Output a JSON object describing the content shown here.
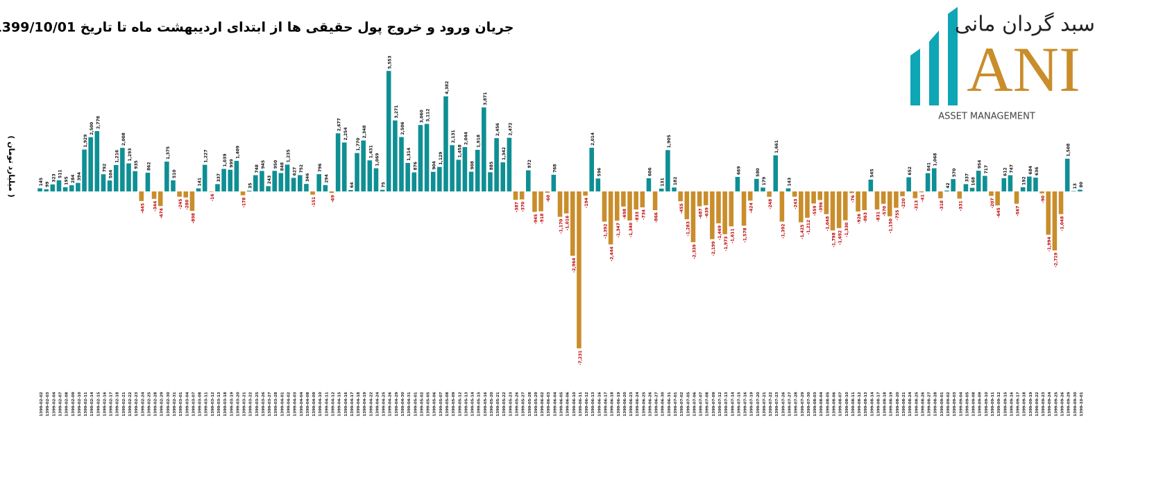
{
  "chart_data": {
    "type": "bar",
    "title": "جریان ورود و خروج پول حقیقی ها از ابتدای اردیبهشت ماه تا تاریخ 1399/10/01",
    "y_label": "( میلیارد تومان )",
    "logo": {
      "name": "سبد گردان مانی",
      "mark": "ANI",
      "tagline": "ASSET MANAGEMENT"
    },
    "colors": {
      "positive": "#0e8f94",
      "negative": "#c98d2b",
      "positive_label": "#111111",
      "negative_label": "#c00000"
    },
    "ylim": [
      -7800,
      5800
    ],
    "categories": [
      "1399-02-02",
      "1399-02-03",
      "1399-02-04",
      "1399-02-07",
      "1399-02-08",
      "1399-02-09",
      "1399-02-10",
      "1399-02-11",
      "1399-02-14",
      "1399-02-15",
      "1399-02-16",
      "1399-02-17",
      "1399-02-18",
      "1399-02-21",
      "1399-02-22",
      "1399-02-23",
      "1399-02-24",
      "1399-02-25",
      "1399-02-28",
      "1399-02-29",
      "1399-02-30",
      "1399-02-31",
      "1399-03-01",
      "1399-03-04",
      "1399-03-07",
      "1399-03-08",
      "1399-03-11",
      "1399-03-12",
      "1399-03-13",
      "1399-03-18",
      "1399-03-19",
      "1399-03-20",
      "1399-03-21",
      "1399-03-22",
      "1399-03-25",
      "1399-03-26",
      "1399-03-27",
      "1399-03-28",
      "1399-04-01",
      "1399-04-02",
      "1399-04-03",
      "1399-04-04",
      "1399-04-08",
      "1399-04-09",
      "1399-04-10",
      "1399-04-11",
      "1399-04-12",
      "1399-04-15",
      "1399-04-16",
      "1399-04-17",
      "1399-04-18",
      "1399-04-19",
      "1399-04-22",
      "1399-04-24",
      "1399-04-25",
      "1399-04-26",
      "1399-04-29",
      "1399-04-30",
      "1399-04-31",
      "1399-05-01",
      "1399-05-02",
      "1399-05-05",
      "1399-05-06",
      "1399-05-07",
      "1399-05-08",
      "1399-05-09",
      "1399-05-12",
      "1399-05-13",
      "1399-05-14",
      "1399-05-15",
      "1399-05-16",
      "1399-05-20",
      "1399-05-21",
      "1399-05-22",
      "1399-05-23",
      "1399-05-26",
      "1399-05-27",
      "1399-05-28",
      "1399-05-29",
      "1399-06-02",
      "1399-06-03",
      "1399-06-04",
      "1399-06-05",
      "1399-06-06",
      "1399-06-10",
      "1399-06-11",
      "1399-06-12",
      "1399-06-13",
      "1399-06-16",
      "1399-06-17",
      "1399-06-18",
      "1399-06-19",
      "1399-06-20",
      "1399-06-23",
      "1399-06-24",
      "1399-06-25",
      "1399-06-26",
      "1399-06-27",
      "1399-06-30",
      "1399-06-31",
      "1399-07-01",
      "1399-07-02",
      "1399-07-05",
      "1399-07-06",
      "1399-07-07",
      "1399-07-08",
      "1399-07-09",
      "1399-07-12",
      "1399-07-13",
      "1399-07-14",
      "1399-07-15",
      "1399-07-16",
      "1399-07-19",
      "1399-07-20",
      "1399-07-21",
      "1399-07-22",
      "1399-07-23",
      "1399-07-26",
      "1399-07-27",
      "1399-07-28",
      "1399-07-29",
      "1399-07-30",
      "1399-08-03",
      "1399-08-04",
      "1399-08-05",
      "1399-08-06",
      "1399-08-07",
      "1399-08-10",
      "1399-08-11",
      "1399-08-12",
      "1399-08-13",
      "1399-08-14",
      "1399-08-17",
      "1399-08-18",
      "1399-08-19",
      "1399-08-20",
      "1399-08-21",
      "1399-08-24",
      "1399-08-25",
      "1399-08-26",
      "1399-08-27",
      "1399-08-28",
      "1399-09-01",
      "1399-09-02",
      "1399-09-03",
      "1399-09-04",
      "1399-09-05",
      "1399-09-08",
      "1399-09-09",
      "1399-09-10",
      "1399-09-11",
      "1399-09-12",
      "1399-09-15",
      "1399-09-16",
      "1399-09-17",
      "1399-09-18",
      "1399-09-19",
      "1399-09-22",
      "1399-09-23",
      "1399-09-24",
      "1399-09-25",
      "1399-09-26",
      "1399-09-29",
      "1399-09-30",
      "1399-10-01"
    ],
    "values": [
      145,
      99,
      323,
      511,
      195,
      284,
      394,
      1929,
      2500,
      2778,
      792,
      504,
      1216,
      2008,
      1293,
      935,
      -445,
      862,
      -344,
      -674,
      1375,
      510,
      -245,
      -280,
      -898,
      141,
      1227,
      -16,
      337,
      1039,
      999,
      1409,
      -178,
      35,
      748,
      945,
      243,
      950,
      848,
      1235,
      627,
      752,
      346,
      -151,
      796,
      294,
      -69,
      2677,
      2254,
      64,
      1770,
      2348,
      1431,
      1069,
      75,
      5553,
      3271,
      2506,
      1314,
      876,
      3060,
      3112,
      904,
      1129,
      4382,
      2131,
      1458,
      2044,
      908,
      1918,
      3871,
      885,
      2456,
      1342,
      2472,
      -387,
      -370,
      972,
      -945,
      -918,
      -60,
      768,
      -1170,
      -1016,
      -2964,
      -7231,
      -194,
      2014,
      596,
      -1392,
      -2444,
      -1347,
      -698,
      -1340,
      -833,
      -734,
      606,
      -866,
      131,
      1905,
      182,
      -455,
      -1283,
      -2339,
      -687,
      -639,
      -2199,
      -1469,
      -1973,
      -1611,
      669,
      -1578,
      -424,
      580,
      179,
      -248,
      1661,
      -1392,
      143,
      -243,
      -1425,
      -1212,
      -559,
      -396,
      -1048,
      -1798,
      -1692,
      -1330,
      -76,
      -926,
      -863,
      545,
      -831,
      -570,
      -1150,
      -755,
      -220,
      652,
      -313,
      -41,
      841,
      1068,
      -318,
      42,
      570,
      -331,
      337,
      168,
      954,
      717,
      -207,
      -645,
      612,
      747,
      -567,
      192,
      684,
      636,
      -90,
      -1994,
      -2719,
      -1048,
      1508,
      13,
      80
    ],
    "value_labels": [
      "145",
      "99",
      "323",
      "511",
      "195",
      "284",
      "394",
      "1,929",
      "2,500",
      "2,778",
      "792",
      "504",
      "1,216",
      "2,008",
      "1,293",
      "935",
      "-445",
      "862",
      "-344",
      "-674",
      "1,375",
      "510",
      "-245",
      "-280",
      "-898",
      "141",
      "1,227",
      "-16",
      "337",
      "1,039",
      "999",
      "1,409",
      "-178",
      "35",
      "748",
      "945",
      "243",
      "950",
      "848",
      "1,235",
      "627",
      "752",
      "346",
      "-151",
      "796",
      "294",
      "-69",
      "2,677",
      "2,254",
      "64",
      "1,770",
      "2,348",
      "1,431",
      "1,069",
      "75",
      "5,553",
      "3,271",
      "2,506",
      "1,314",
      "876",
      "3,060",
      "3,112",
      "904",
      "1,129",
      "4,382",
      "2,131",
      "1,458",
      "2,044",
      "908",
      "1,918",
      "3,871",
      "885",
      "2,456",
      "1,342",
      "2,472",
      "-387",
      "-370",
      "972",
      "-945",
      "-918",
      "-60",
      "768",
      "-1,170",
      "-1,016",
      "-2,964",
      "-7,231",
      "-194",
      "2,014",
      "596",
      "-1,392",
      "-2,444",
      "-1,347",
      "-698",
      "-1,340",
      "-833",
      "-734",
      "606",
      "-866",
      "131",
      "1,905",
      "182",
      "-455",
      "-1,283",
      "-2,339",
      "-687",
      "-639",
      "-2,199",
      "-1,469",
      "-1,973",
      "-1,611",
      "669",
      "-1,578",
      "-424",
      "580",
      "179",
      "-248",
      "1,661",
      "-1,392",
      "143",
      "-243",
      "-1,425",
      "-1,212",
      "-559",
      "-396",
      "-1,048",
      "-1,798",
      "-1,692",
      "-1,330",
      "-76",
      "-926",
      "-863",
      "545",
      "-831",
      "-570",
      "-1,150",
      "-755",
      "-220",
      "652",
      "-313",
      "-41",
      "841",
      "1,068",
      "-318",
      "42",
      "570",
      "-331",
      "337",
      "168",
      "954",
      "717",
      "-207",
      "-645",
      "612",
      "747",
      "-567",
      "192",
      "684",
      "636",
      "-90",
      "-1,994",
      "-2,719",
      "-1,048",
      "1,508",
      "13",
      "80"
    ]
  }
}
